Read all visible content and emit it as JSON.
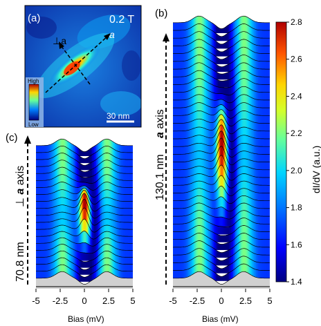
{
  "panel_a": {
    "label": "(a)",
    "field": "0.2 T",
    "axis_a": "a",
    "axis_perp": "⊥a",
    "scalebar": "30 nm",
    "inset_high": "High",
    "inset_low": "Low"
  },
  "panel_b": {
    "label": "(b)",
    "side_axis_italic": "a",
    "side_axis_rest": " axis",
    "length": "130.1 nm"
  },
  "panel_c": {
    "label": "(c)",
    "side_axis_prefix": "⊥ ",
    "side_axis_italic": "a",
    "side_axis_rest": " axis",
    "length": "70.8 nm"
  },
  "colorbar": {
    "label": "dI/dV (a.u.)",
    "ticks": [
      "2.8",
      "2.6",
      "2.4",
      "2.2",
      "2.0",
      "1.8",
      "1.6",
      "1.4"
    ],
    "range": [
      1.4,
      2.8
    ],
    "colors": [
      "#00007f",
      "#0000ff",
      "#0080ff",
      "#00d4ff",
      "#66ff99",
      "#d4ff2a",
      "#ffd400",
      "#ff5500",
      "#b00000"
    ]
  },
  "chart_data": [
    {
      "type": "line",
      "panel": "(b)",
      "xlabel": "Bias (mV)",
      "xlim": [
        -5,
        5
      ],
      "xticks": [
        "-5",
        "-2.5",
        "0",
        "2.5",
        "5"
      ],
      "n_spectra": 34,
      "series_description_axis": "a axis",
      "length_nm": 130.1
    },
    {
      "type": "line",
      "panel": "(c)",
      "xlabel": "Bias (mV)",
      "xlim": [
        -5,
        5
      ],
      "xticks": [
        "-5",
        "-2.5",
        "0",
        "2.5",
        "5"
      ],
      "n_spectra": 20,
      "length_nm": 70.8
    }
  ]
}
